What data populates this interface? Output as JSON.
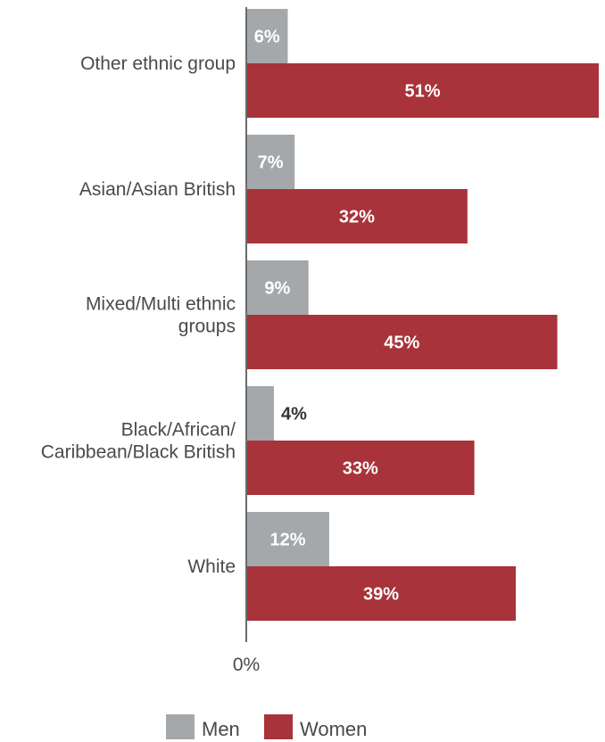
{
  "chart_data": {
    "type": "bar",
    "orientation": "horizontal",
    "categories": [
      [
        "Other ethnic group"
      ],
      [
        "Asian/Asian British"
      ],
      [
        "Mixed/Multi ethnic",
        "groups"
      ],
      [
        "Black/African/",
        "Caribbean/Black British"
      ],
      [
        "White"
      ]
    ],
    "series": [
      {
        "name": "Men",
        "color": "#a4a8ab",
        "values": [
          6,
          7,
          9,
          4,
          12
        ],
        "labels": [
          "6%",
          "7%",
          "9%",
          "4%",
          "12%"
        ]
      },
      {
        "name": "Women",
        "color": "#a8333a",
        "values": [
          51,
          32,
          45,
          33,
          39
        ],
        "labels": [
          "51%",
          "32%",
          "45%",
          "33%",
          "39%"
        ]
      }
    ],
    "x_tick_labels": [
      "0%"
    ],
    "xlim": [
      0,
      51
    ],
    "grid": false,
    "legend_position": "bottom"
  }
}
